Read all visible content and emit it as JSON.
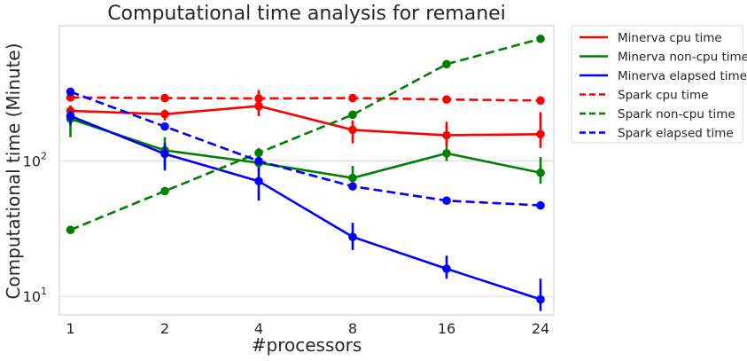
{
  "chart_data": {
    "type": "line",
    "title": "Computational time analysis for remanei",
    "xlabel": "#processors",
    "ylabel": "Computational time (Minute)",
    "categories": [
      "1",
      "2",
      "4",
      "8",
      "16",
      "24"
    ],
    "y_scale": "log",
    "ylim": [
      7.3,
      1000
    ],
    "y_ticks": [
      {
        "value": 10,
        "base": "10",
        "exp": "1"
      },
      {
        "value": 100,
        "base": "10",
        "exp": "2"
      }
    ],
    "grid": "horizontal",
    "legend_position": "outside-right",
    "series": [
      {
        "name": "Minerva cpu time",
        "color": "#ff0000",
        "dash": "solid",
        "values": [
          235,
          222,
          255,
          170,
          155,
          158
        ],
        "errors": [
          [
            215,
            258
          ],
          [
            200,
            240
          ],
          [
            215,
            335
          ],
          [
            135,
            200
          ],
          [
            128,
            195
          ],
          [
            125,
            230
          ]
        ]
      },
      {
        "name": "Minerva non-cpu time",
        "color": "#008000",
        "dash": "solid",
        "values": [
          205,
          120,
          97,
          75,
          114,
          82
        ],
        "errors": [
          [
            150,
            245
          ],
          [
            92,
            150
          ],
          [
            85,
            125
          ],
          [
            62,
            92
          ],
          [
            100,
            128
          ],
          [
            68,
            107
          ]
        ]
      },
      {
        "name": "Minerva elapsed time",
        "color": "#0000ff",
        "dash": "solid",
        "values": [
          215,
          113,
          71,
          27.5,
          16,
          9.5
        ],
        "errors": [
          [
            185,
            235
          ],
          [
            85,
            135
          ],
          [
            51,
            90
          ],
          [
            22,
            35
          ],
          [
            13.5,
            20
          ],
          [
            7.8,
            13.5
          ]
        ]
      },
      {
        "name": "Spark cpu time",
        "color": "#ff0000",
        "dash": "dashed",
        "values": [
          295,
          292,
          290,
          292,
          285,
          280
        ],
        "errors": null
      },
      {
        "name": "Spark non-cpu time",
        "color": "#008000",
        "dash": "dashed",
        "values": [
          31,
          60,
          115,
          220,
          520,
          800
        ],
        "errors": null
      },
      {
        "name": "Spark elapsed time",
        "color": "#0000ff",
        "dash": "dashed",
        "values": [
          325,
          180,
          100,
          65,
          51,
          47
        ],
        "errors": null
      }
    ]
  }
}
